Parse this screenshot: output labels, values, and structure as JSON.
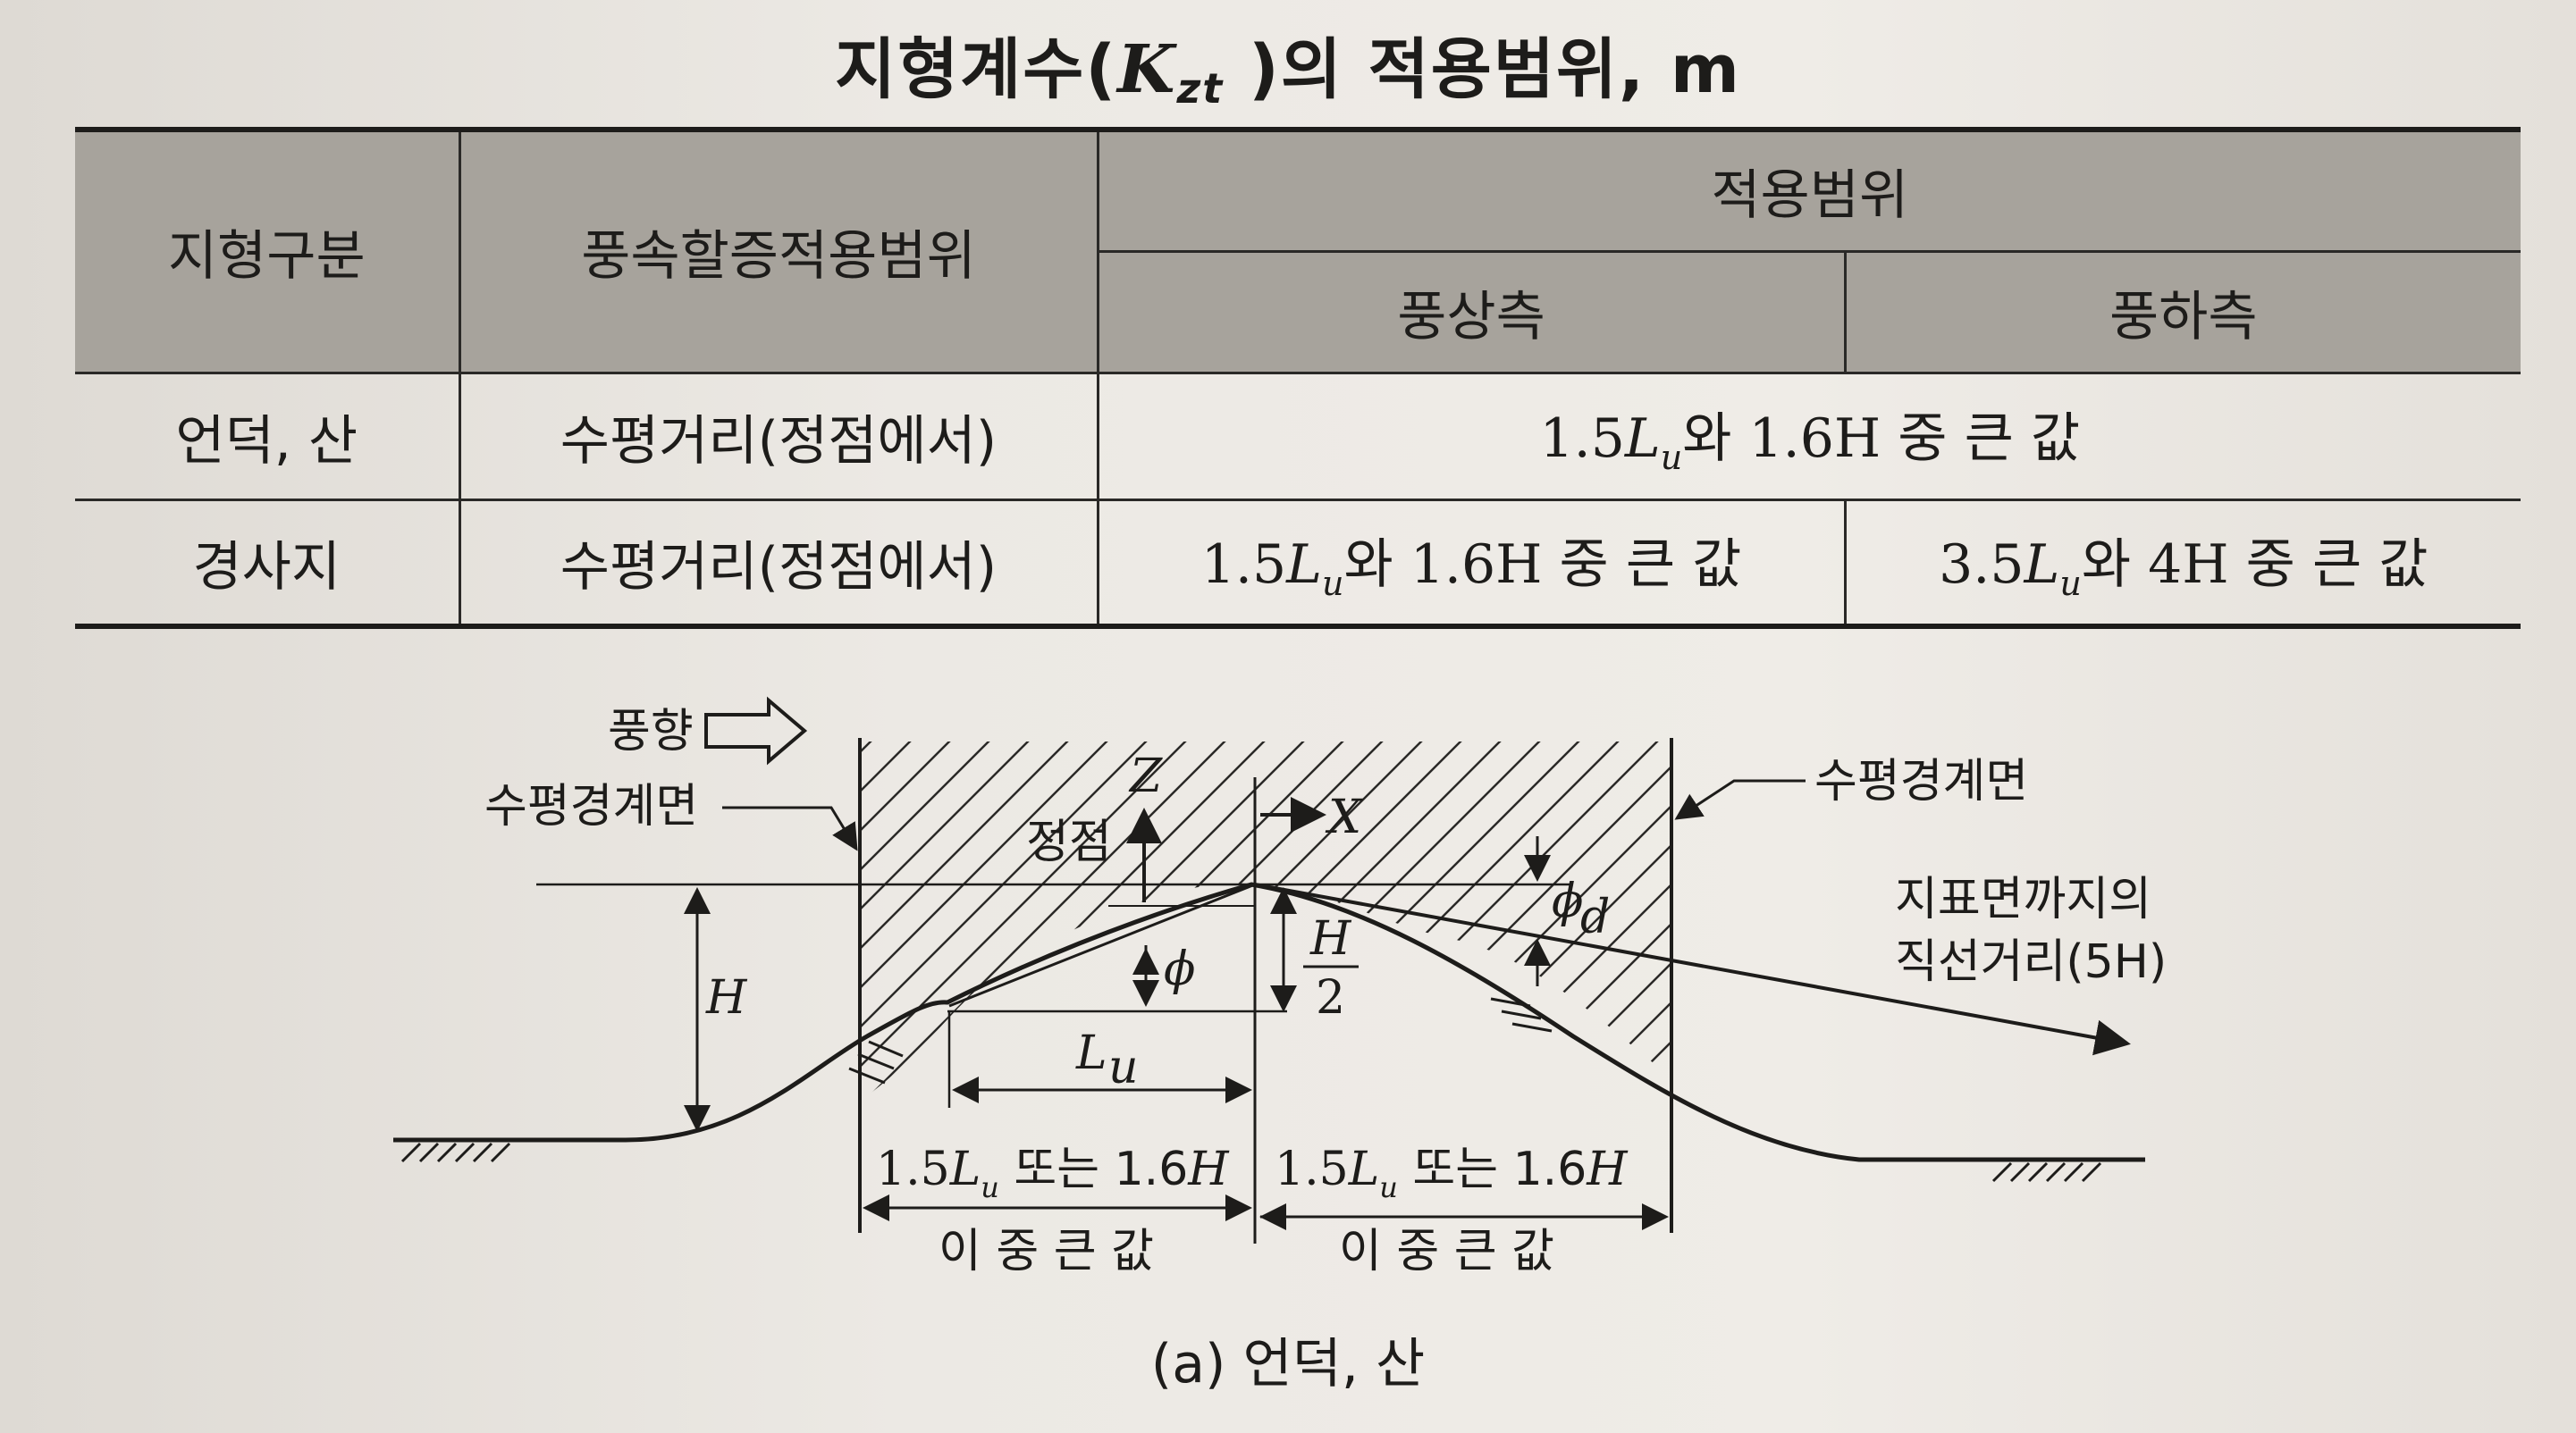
{
  "title": {
    "prefix": "지형계수(",
    "symbol": "K",
    "subscript": "zt",
    "suffix": " )의 적용범위, m"
  },
  "table": {
    "headers": {
      "terrain": "지형구분",
      "wind_range": "풍속할증적용범위",
      "apply_range": "적용범위",
      "upwind": "풍상측",
      "downwind": "풍하측"
    },
    "rows": [
      {
        "terrain": "언덕, 산",
        "wind_range": "수평거리(정점에서)",
        "combined": {
          "a": "1.5",
          "sym": "L",
          "sub": "u",
          "b": "와 1.6H 중  큰 값"
        }
      },
      {
        "terrain": "경사지",
        "wind_range": "수평거리(정점에서)",
        "upwind": {
          "a": "1.5",
          "sym": "L",
          "sub": "u",
          "b": "와 1.6H 중 큰 값"
        },
        "downwind": {
          "a": "3.5",
          "sym": "L",
          "sub": "u",
          "b": "와 4H 중 큰 값"
        }
      }
    ]
  },
  "diagram": {
    "wind_direction": "풍향",
    "boundary_left": "수평경계면",
    "boundary_right": "수평경계면",
    "peak": "정점",
    "z_axis": "Z",
    "x_axis": "X",
    "phi": "ϕ",
    "phi_d": "ϕ",
    "phi_d_sub": "d",
    "height": "H",
    "half_h_num": "H",
    "half_h_den": "2",
    "lu": "L",
    "lu_sub": "u",
    "straight_line_1": "지표면까지의",
    "straight_line_2": "직선거리(5H)",
    "dim_left": {
      "a": "1.5",
      "sym": "L",
      "sub": "u",
      "b": " 또는 1.6",
      "c": "H"
    },
    "dim_right": {
      "a": "1.5",
      "sym": "L",
      "sub": "u",
      "b": " 또는 1.6",
      "c": "H"
    },
    "larger_left": "이 중 큰 값",
    "larger_right": "이 중 큰 값"
  },
  "caption": "(a) 언덕, 산"
}
